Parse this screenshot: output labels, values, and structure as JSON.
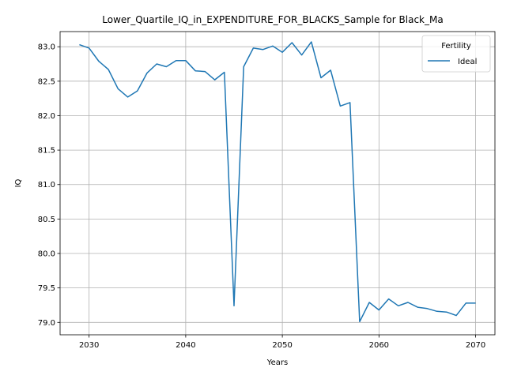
{
  "chart_data": {
    "type": "line",
    "title": "Lower_Quartile_IQ_in_EXPENDITURE_FOR_BLACKS_Sample for Black_Ma",
    "xlabel": "Years",
    "ylabel": "IQ",
    "xlim": [
      2027,
      2072
    ],
    "ylim": [
      78.82,
      83.22
    ],
    "xticks": [
      "2030",
      "2040",
      "2050",
      "2060",
      "2070"
    ],
    "yticks": [
      "79.0",
      "79.5",
      "80.0",
      "80.5",
      "81.0",
      "81.5",
      "82.0",
      "82.5",
      "83.0"
    ],
    "grid": true,
    "legend": {
      "title": "Fertility",
      "placement": "top-right"
    },
    "colors": {
      "series": "#1f77b4",
      "grid": "#b0b0b0",
      "axis": "#000000"
    },
    "series": [
      {
        "name": "Ideal",
        "x": [
          2029,
          2030,
          2031,
          2032,
          2033,
          2034,
          2035,
          2036,
          2037,
          2038,
          2039,
          2040,
          2041,
          2042,
          2043,
          2044,
          2045,
          2046,
          2047,
          2048,
          2049,
          2050,
          2051,
          2052,
          2053,
          2054,
          2055,
          2056,
          2057,
          2058,
          2059,
          2060,
          2061,
          2062,
          2063,
          2064,
          2065,
          2066,
          2067,
          2068,
          2069,
          2070
        ],
        "values": [
          83.03,
          82.98,
          82.79,
          82.67,
          82.39,
          82.27,
          82.36,
          82.62,
          82.75,
          82.71,
          82.8,
          82.8,
          82.65,
          82.64,
          82.52,
          82.63,
          79.24,
          82.71,
          82.98,
          82.96,
          83.01,
          82.92,
          83.06,
          82.88,
          83.07,
          82.55,
          82.66,
          82.14,
          82.19,
          79.01,
          79.29,
          79.18,
          79.34,
          79.24,
          79.29,
          79.22,
          79.2,
          79.16,
          79.15,
          79.1,
          79.28,
          79.28
        ]
      }
    ]
  }
}
